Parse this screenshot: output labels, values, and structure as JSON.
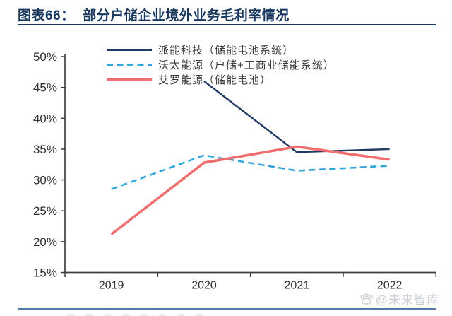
{
  "header": {
    "title": "图表66：  部分户储企业境外业务毛利率情况"
  },
  "watermark": {
    "icon": "paw-icon",
    "text": "@未来智库"
  },
  "colors": {
    "title_navy": "#17375e",
    "axis": "#3f3f3f",
    "tick_label": "#303030",
    "bottom_rule": "#4d7ca9",
    "watermark_gray": "#c6ccd2"
  },
  "chart_data": {
    "type": "line",
    "title": "部分户储企业境外业务毛利率情况",
    "categories": [
      "2019",
      "2020",
      "2021",
      "2022"
    ],
    "series": [
      {
        "name": "派能科技（储能电池系统）",
        "color": "#1f3864",
        "line_style": "solid",
        "stroke_width": 2.4,
        "values": [
          null,
          46.0,
          34.5,
          35.0
        ]
      },
      {
        "name": "沃太能源（户储+工商业储能系统）",
        "color": "#33a6dc",
        "line_style": "dashed",
        "stroke_width": 2.6,
        "values": [
          28.5,
          34.0,
          31.5,
          32.3
        ]
      },
      {
        "name": "艾罗能源（储能电池）",
        "color": "#f06e6e",
        "line_style": "solid",
        "stroke_width": 3.6,
        "values": [
          21.2,
          32.8,
          35.4,
          33.3
        ]
      }
    ],
    "ylim": [
      15,
      50
    ],
    "y_ticks": [
      {
        "v": 50,
        "label": "50%"
      },
      {
        "v": 45,
        "label": "45%"
      },
      {
        "v": 40,
        "label": "40%"
      },
      {
        "v": 35,
        "label": "35%"
      },
      {
        "v": 30,
        "label": "30%"
      },
      {
        "v": 25,
        "label": "25%"
      },
      {
        "v": 20,
        "label": "20%"
      },
      {
        "v": 15,
        "label": "15%"
      }
    ],
    "xlabel": "",
    "ylabel": "",
    "grid": false,
    "legend_position": "top-inside"
  }
}
